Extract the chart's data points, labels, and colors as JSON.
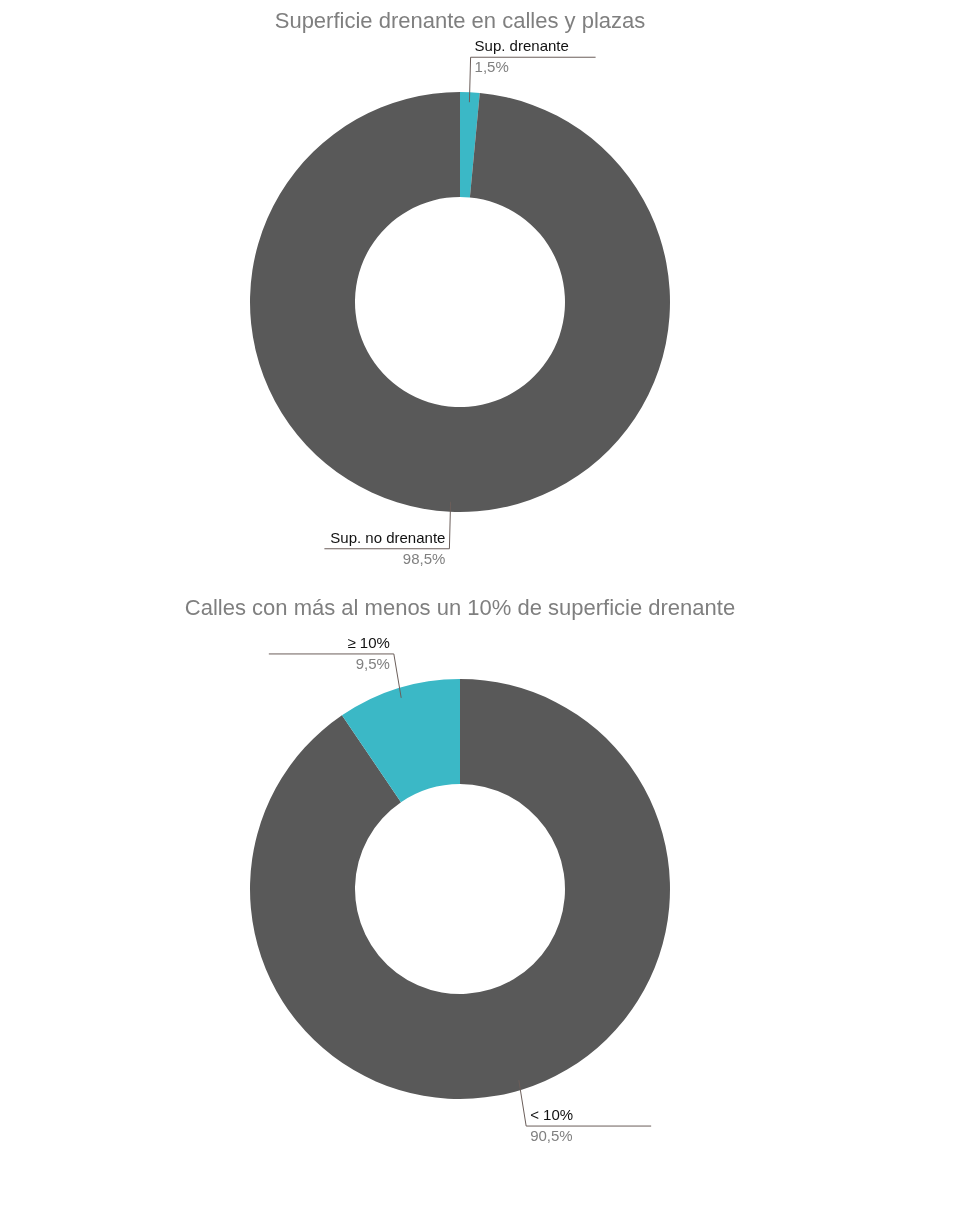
{
  "chart_data": [
    {
      "type": "donut",
      "title": "Superficie drenante en calles y plazas",
      "categories": [
        "Sup. drenante",
        "Sup. no drenante"
      ],
      "values": [
        1.5,
        98.5
      ],
      "colors": [
        "#3bb8c6",
        "#595959"
      ],
      "value_labels": [
        "1,5%",
        "98,5%"
      ],
      "legend": false
    },
    {
      "type": "donut",
      "title": "Calles con más al menos un 10% de superficie drenante",
      "categories": [
        "< 10%",
        "≥ 10%"
      ],
      "values": [
        90.5,
        9.5
      ],
      "colors": [
        "#595959",
        "#3bb8c6"
      ],
      "value_labels": [
        "90,5%",
        "9,5%"
      ],
      "legend": false
    }
  ]
}
